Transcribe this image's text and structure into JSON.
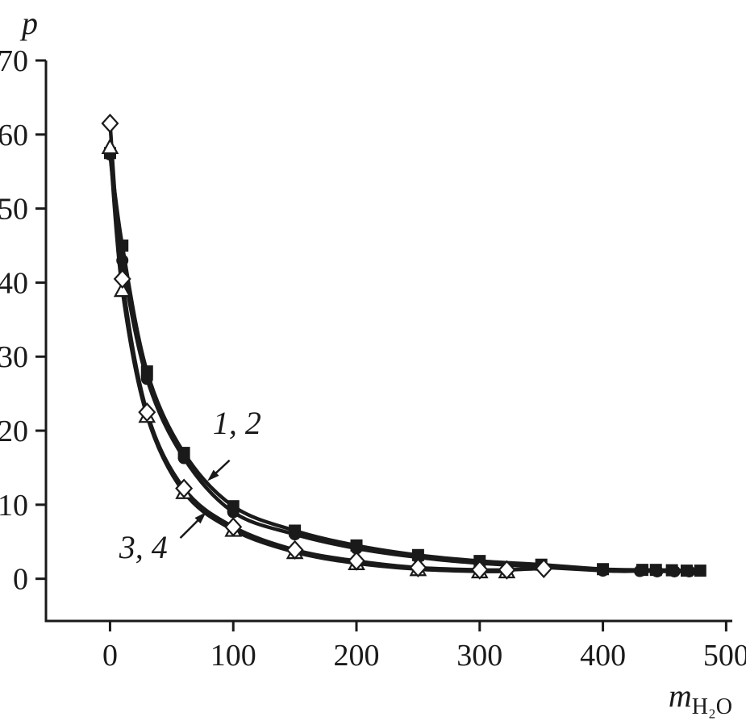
{
  "chart_data": {
    "type": "scatter-line",
    "title": "",
    "xlabel": "m_H2O",
    "xlabel_main": "m",
    "xlabel_sub": "H₂O",
    "ylabel": "p",
    "x_ticks": [
      0,
      100,
      200,
      300,
      400,
      500
    ],
    "y_ticks": [
      0,
      10,
      20,
      30,
      40,
      50,
      60,
      70
    ],
    "x_range": [
      -52,
      505
    ],
    "y_range": [
      -5.7,
      70
    ],
    "grid": false,
    "legend": "none",
    "axis_color": "#1a1a1a",
    "line_color": "#1a1a1a",
    "marker_fill_open": "#ffffff",
    "series": [
      {
        "name": "1",
        "marker": "filled-square",
        "x": [
          0,
          10,
          30,
          60,
          100,
          150,
          200,
          250,
          300,
          350,
          400,
          432,
          443,
          456,
          468,
          479
        ],
        "y": [
          57.5,
          45,
          28,
          17,
          9.8,
          6.5,
          4.5,
          3.2,
          2.4,
          1.9,
          1.3,
          1.2,
          1.2,
          1.15,
          1.1,
          1.1
        ]
      },
      {
        "name": "2",
        "marker": "filled-circle",
        "x": [
          0,
          10,
          30,
          60,
          100,
          150,
          200,
          250,
          300,
          400,
          430,
          444,
          458,
          470
        ],
        "y": [
          57.3,
          43,
          27,
          16.3,
          9.0,
          6.0,
          4.1,
          2.9,
          2.1,
          1.1,
          1.05,
          1.0,
          1.0,
          1.0
        ]
      },
      {
        "name": "3",
        "marker": "open-diamond",
        "x": [
          0,
          10,
          30,
          60,
          100,
          150,
          200,
          250,
          300,
          322,
          352
        ],
        "y": [
          61.5,
          40.5,
          22.5,
          12.2,
          7.0,
          3.9,
          2.4,
          1.5,
          1.2,
          1.2,
          1.4
        ]
      },
      {
        "name": "4",
        "marker": "open-triangle",
        "x": [
          0,
          10,
          30,
          60,
          100,
          150,
          200,
          250,
          300,
          322
        ],
        "y": [
          58.3,
          39,
          22,
          11.7,
          6.6,
          3.6,
          2.1,
          1.3,
          1.0,
          1.0
        ]
      }
    ],
    "annotations": [
      {
        "label": "1, 2",
        "text_x": 103,
        "text_y": 21,
        "arrow": {
          "from_x": 97,
          "from_y": 16,
          "to_x": 79,
          "to_y": 13.2
        }
      },
      {
        "label": "3, 4",
        "text_x": 27,
        "text_y": 4.2,
        "arrow": {
          "from_x": 57,
          "from_y": 5.5,
          "to_x": 78,
          "to_y": 9.0
        }
      }
    ]
  }
}
